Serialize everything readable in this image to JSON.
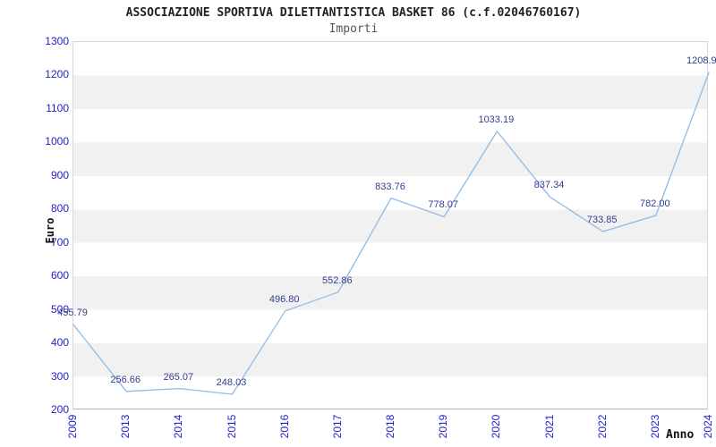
{
  "header": {
    "title": "ASSOCIAZIONE SPORTIVA DILETTANTISTICA BASKET 86 (c.f.02046760167)",
    "subtitle": "Importi"
  },
  "chart_data": {
    "type": "line",
    "title": "ASSOCIAZIONE SPORTIVA DILETTANTISTICA BASKET 86 (c.f.02046760167)",
    "subtitle": "Importi",
    "xlabel": "Anno",
    "ylabel": "Euro",
    "categories": [
      "2009",
      "2013",
      "2014",
      "2015",
      "2016",
      "2017",
      "2018",
      "2019",
      "2020",
      "2021",
      "2022",
      "2023",
      "2024"
    ],
    "values": [
      455.79,
      256.66,
      265.07,
      248.03,
      496.8,
      552.86,
      833.76,
      778.07,
      1033.19,
      837.34,
      733.85,
      782.0,
      1208.9
    ],
    "point_labels": [
      "455.79",
      "256.66",
      "265.07",
      "248.03",
      "496.80",
      "552.86",
      "833.76",
      "778.07",
      "1033.19",
      "837.34",
      "733.85",
      "782.00",
      "1208.9"
    ],
    "yticks": [
      200,
      300,
      400,
      500,
      600,
      700,
      800,
      900,
      1000,
      1100,
      1200,
      1300
    ],
    "ylim": [
      200,
      1300
    ],
    "grid": "horizontal-stripes",
    "legend": "none",
    "colors": {
      "line": "#8fbce8",
      "tick_labels": "#2222cc",
      "point_labels": "#333d8f",
      "stripe": "#f1f1f1",
      "title": "#222222",
      "subtitle": "#555555"
    }
  }
}
